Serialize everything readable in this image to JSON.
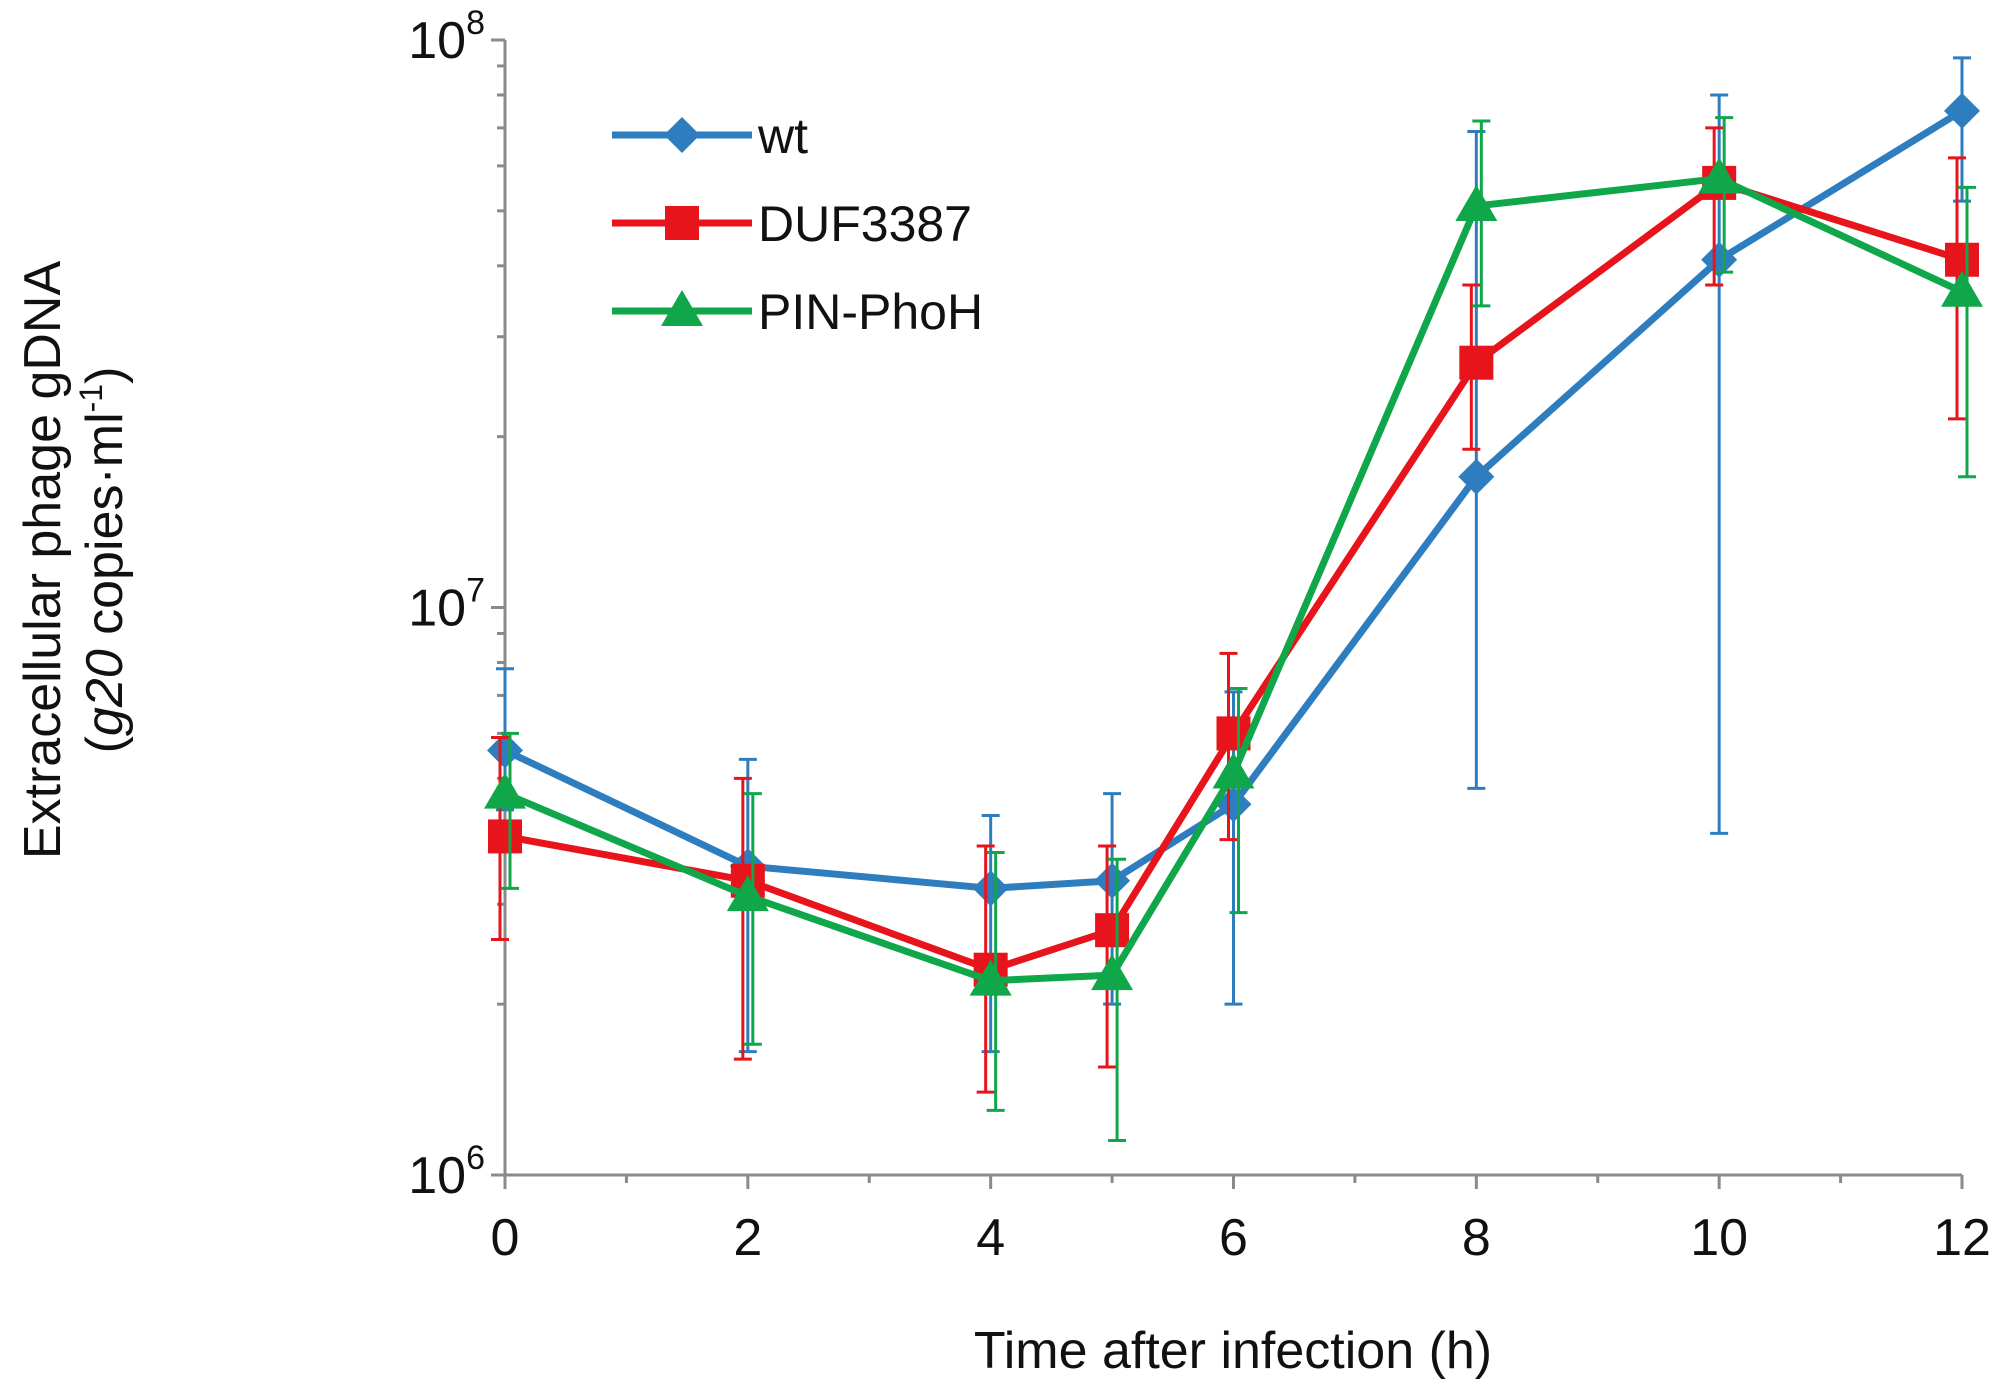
{
  "chart_data": {
    "type": "line",
    "title": "",
    "xlabel": "Time after infection (h)",
    "ylabel_line1": "Extracellular phage gDNA",
    "ylabel_line2": {
      "open": "(",
      "italic": "g20",
      "rest": " copies·ml",
      "sup": "-1",
      "close": ")"
    },
    "yscale": "log",
    "ylim": [
      1000000,
      100000000
    ],
    "xlim": [
      0,
      12
    ],
    "x_ticks": [
      0,
      2,
      4,
      6,
      8,
      10,
      12
    ],
    "x_tick_labels": [
      "0",
      "2",
      "4",
      "6",
      "8",
      "10",
      "12"
    ],
    "x_minor_ticks": [
      1,
      3,
      5,
      7,
      9,
      11
    ],
    "y_ticks": [
      {
        "value": 1000000,
        "base": "10",
        "exp": "6"
      },
      {
        "value": 10000000,
        "base": "10",
        "exp": "7"
      },
      {
        "value": 100000000,
        "base": "10",
        "exp": "8"
      }
    ],
    "y_minor_ticks": [
      2000000,
      3000000,
      4000000,
      5000000,
      6000000,
      7000000,
      8000000,
      9000000,
      20000000,
      30000000,
      40000000,
      50000000,
      60000000,
      70000000,
      80000000,
      90000000
    ],
    "legend_position": "top-left",
    "x": [
      0,
      2,
      4,
      5,
      6,
      8,
      10,
      12
    ],
    "series": [
      {
        "name": "wt",
        "color": "#2e7ebf",
        "marker": "diamond",
        "values": [
          5600000,
          3500000,
          3200000,
          3300000,
          4500000,
          17000000,
          41000000,
          75000000
        ],
        "err_low": [
          4400000,
          1650000,
          1650000,
          2000000,
          2000000,
          4800000,
          4000000,
          52000000
        ],
        "err_high": [
          7800000,
          5400000,
          4300000,
          4700000,
          7100000,
          69000000,
          80000000,
          93000000
        ]
      },
      {
        "name": "DUF3387",
        "color": "#e8141c",
        "marker": "square",
        "values": [
          3950000,
          3300000,
          2300000,
          2700000,
          6000000,
          27000000,
          56000000,
          41000000
        ],
        "err_low": [
          2600000,
          1600000,
          1400000,
          1550000,
          3900000,
          19000000,
          37000000,
          21500000
        ],
        "err_high": [
          5900000,
          5000000,
          3800000,
          3800000,
          8300000,
          37000000,
          70000000,
          62000000
        ]
      },
      {
        "name": "PIN-PhoH",
        "color": "#10a64a",
        "marker": "triangle",
        "values": [
          4700000,
          3100000,
          2200000,
          2250000,
          5100000,
          51000000,
          57000000,
          36000000
        ],
        "err_low": [
          3200000,
          1700000,
          1300000,
          1150000,
          2900000,
          34000000,
          39000000,
          17000000
        ],
        "err_high": [
          6000000,
          4700000,
          3700000,
          3600000,
          7200000,
          72000000,
          73000000,
          55000000
        ]
      }
    ]
  }
}
